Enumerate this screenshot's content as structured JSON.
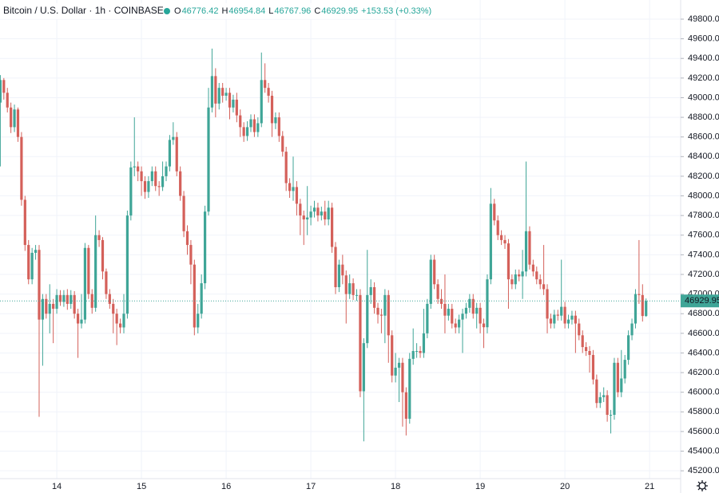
{
  "chart_data": {
    "type": "candlestick",
    "title": "Bitcoin / U.S. Dollar · 1h · COINBASE",
    "ohlc_labels": [
      "O",
      "H",
      "L",
      "C"
    ],
    "change_text": "+153.53 (+0.33%)",
    "up_color": "#3fa597",
    "down_color": "#d4605a",
    "grid": true,
    "xtick_labels": [
      "14",
      "15",
      "16",
      "17",
      "18",
      "19",
      "20",
      "21"
    ],
    "ylim": [
      45120,
      49995
    ],
    "yticks": [
      {
        "value": 45200,
        "label": "45200.00"
      },
      {
        "value": 45400,
        "label": "45400.00"
      },
      {
        "value": 45600,
        "label": "45600.00"
      },
      {
        "value": 45800,
        "label": "45800.00"
      },
      {
        "value": 46000,
        "label": "46000.00"
      },
      {
        "value": 46200,
        "label": "46200.00"
      },
      {
        "value": 46400,
        "label": "46400.00"
      },
      {
        "value": 46600,
        "label": "46600.00"
      },
      {
        "value": 46800,
        "label": "46800.00"
      },
      {
        "value": 47000,
        "label": "47000.00"
      },
      {
        "value": 47200,
        "label": "47200.00"
      },
      {
        "value": 47400,
        "label": "47400.00"
      },
      {
        "value": 47600,
        "label": "47600.00"
      },
      {
        "value": 47800,
        "label": "47800.00"
      },
      {
        "value": 48000,
        "label": "48000.00"
      },
      {
        "value": 48200,
        "label": "48200.00"
      },
      {
        "value": 48400,
        "label": "48400.00"
      },
      {
        "value": 48600,
        "label": "48600.00"
      },
      {
        "value": 48800,
        "label": "48800.00"
      },
      {
        "value": 49000,
        "label": "49000.00"
      },
      {
        "value": 49200,
        "label": "49200.00"
      },
      {
        "value": 49400,
        "label": "49400.00"
      },
      {
        "value": 49600,
        "label": "49600.00"
      },
      {
        "value": 49800,
        "label": "49800.00"
      }
    ],
    "open": [
      48950,
      49180,
      49050,
      48900,
      48700,
      48880,
      48600,
      47960,
      47500,
      47150,
      47420,
      47450,
      46740,
      46950,
      46800,
      46900,
      46850,
      46990,
      46920,
      46990,
      46900,
      46990,
      46800,
      46700,
      46740,
      47470,
      47000,
      46860,
      47600,
      47550,
      47230,
      47000,
      46900,
      46800,
      46700,
      46660,
      46800,
      47800,
      48290,
      48300,
      48250,
      48150,
      48040,
      48150,
      48250,
      48100,
      48090,
      48200,
      48300,
      48570,
      48600,
      48250,
      48000,
      47640,
      47500,
      47300,
      46660,
      46800,
      47110,
      47840,
      48900,
      49220,
      48940,
      49100,
      49020,
      49050,
      48900,
      48980,
      48820,
      48700,
      48610,
      48700,
      48780,
      48650,
      48740,
      49180,
      49100,
      49020,
      48740,
      48800,
      48610,
      48450,
      48130,
      48050,
      48090,
      47920,
      47800,
      47760,
      47780,
      47840,
      47880,
      47800,
      47840,
      47760,
      47880,
      47480,
      47070,
      47300,
      47190,
      47000,
      47110,
      46990,
      46990,
      46010,
      46500,
      46990,
      47070,
      46860,
      46790,
      46780,
      46990,
      46580,
      46170,
      46250,
      46300,
      46000,
      45730,
      46340,
      46420,
      46420,
      46400,
      46600,
      46900,
      47350,
      47100,
      46950,
      46900,
      46780,
      46850,
      46700,
      46660,
      46740,
      46800,
      46860,
      46950,
      46800,
      46860,
      46700,
      46662,
      47150,
      47920,
      47750,
      47600,
      47550,
      47516,
      47150,
      47100,
      47200,
      47180,
      47230,
      47640,
      47300,
      47230,
      47150,
      47100,
      47050,
      46750,
      46700,
      46790,
      46780,
      46870,
      46700,
      46740,
      46780,
      46700,
      46580,
      46460,
      46420,
      46380,
      46130,
      45890,
      45950,
      45970,
      45770,
      45770,
      46300,
      46000,
      46140,
      46330,
      46580,
      46700,
      47000,
      46990,
      46776.42
    ],
    "high": [
      49230,
      49200,
      49100,
      48950,
      48930,
      48900,
      48650,
      48000,
      47550,
      47470,
      47500,
      47500,
      47000,
      47000,
      47100,
      46950,
      47050,
      47040,
      47040,
      47050,
      47040,
      47030,
      46850,
      47000,
      47520,
      47500,
      47050,
      47800,
      47650,
      47580,
      47260,
      47050,
      46950,
      46850,
      46750,
      47000,
      47850,
      48350,
      48800,
      48350,
      48300,
      48200,
      48200,
      48300,
      48300,
      48150,
      48350,
      48350,
      48620,
      48750,
      48650,
      48300,
      48050,
      47700,
      47550,
      47350,
      46900,
      47200,
      47900,
      49100,
      49500,
      49300,
      49150,
      49150,
      49100,
      49100,
      49030,
      49050,
      48880,
      48750,
      48760,
      48830,
      48830,
      48800,
      49460,
      49350,
      49150,
      49070,
      48850,
      48850,
      48660,
      48500,
      48180,
      48400,
      48150,
      47970,
      47850,
      48100,
      47900,
      47950,
      47930,
      47890,
      47950,
      47950,
      47930,
      47530,
      47350,
      47400,
      47240,
      47200,
      47160,
      47050,
      47050,
      46550,
      47450,
      47150,
      47120,
      46910,
      46850,
      47050,
      47040,
      46630,
      46400,
      46350,
      46350,
      46050,
      46400,
      46650,
      46500,
      46470,
      46850,
      46950,
      47400,
      47400,
      47150,
      47050,
      47200,
      46900,
      46900,
      46750,
      46790,
      46850,
      46910,
      47000,
      47000,
      46910,
      46910,
      46750,
      47200,
      48080,
      47970,
      47800,
      47650,
      47600,
      47560,
      47200,
      47250,
      47250,
      47450,
      48350,
      47690,
      47350,
      47280,
      47200,
      47500,
      47100,
      46800,
      46840,
      46840,
      47350,
      46920,
      46790,
      46830,
      46830,
      46750,
      46630,
      46510,
      46470,
      46430,
      46180,
      46000,
      46050,
      46020,
      45820,
      46350,
      46350,
      46430,
      46380,
      46630,
      46750,
      47050,
      47550,
      47100,
      46954.84
    ],
    "low": [
      48300,
      48980,
      48850,
      48640,
      48650,
      48550,
      47900,
      47440,
      47100,
      47100,
      47350,
      45750,
      46270,
      46750,
      46600,
      46500,
      46800,
      46880,
      46870,
      46840,
      46850,
      46750,
      46350,
      46650,
      46700,
      46950,
      46800,
      46820,
      47480,
      47150,
      46950,
      46850,
      46600,
      46480,
      46600,
      46600,
      46750,
      47750,
      48200,
      48150,
      48000,
      47970,
      47980,
      48100,
      48050,
      48000,
      48050,
      48150,
      48250,
      48520,
      48200,
      47950,
      47580,
      47400,
      47100,
      46580,
      46600,
      46750,
      47050,
      47800,
      48850,
      48800,
      48880,
      48950,
      48970,
      48780,
      48850,
      48750,
      48600,
      48550,
      48560,
      48650,
      48600,
      48600,
      48700,
      49050,
      48950,
      48600,
      48680,
      48550,
      48400,
      48050,
      47980,
      47950,
      47800,
      47600,
      47500,
      47600,
      47700,
      47780,
      47740,
      47750,
      47700,
      47700,
      47420,
      47000,
      47020,
      47100,
      46700,
      46950,
      46940,
      46930,
      45950,
      45500,
      46450,
      46900,
      46800,
      46700,
      46600,
      46500,
      46300,
      46100,
      46100,
      45900,
      45650,
      45560,
      45680,
      46280,
      46350,
      46350,
      46350,
      46550,
      46850,
      47050,
      46900,
      46850,
      46600,
      46730,
      46650,
      46600,
      46600,
      46400,
      46750,
      46810,
      46750,
      46650,
      46600,
      46450,
      46600,
      47100,
      47700,
      47550,
      47500,
      47460,
      46850,
      47050,
      47050,
      47130,
      46950,
      47180,
      47250,
      47180,
      47100,
      47050,
      46990,
      46600,
      46650,
      46650,
      46730,
      46730,
      46650,
      46650,
      46690,
      46400,
      46530,
      46400,
      46370,
      46200,
      46080,
      45840,
      45840,
      45900,
      45700,
      45580,
      45720,
      45950,
      45950,
      46090,
      46280,
      46530,
      46650,
      46900,
      46720,
      46767.96
    ],
    "close": [
      49180,
      49050,
      48900,
      48700,
      48880,
      48600,
      47960,
      47500,
      47150,
      47420,
      47450,
      46740,
      46950,
      46800,
      46900,
      46850,
      46990,
      46920,
      46990,
      46900,
      46990,
      46800,
      46700,
      46740,
      47470,
      47000,
      46860,
      47600,
      47550,
      47230,
      47000,
      46900,
      46800,
      46700,
      46660,
      46800,
      47800,
      48290,
      48300,
      48250,
      48150,
      48040,
      48150,
      48250,
      48100,
      48090,
      48200,
      48300,
      48570,
      48600,
      48250,
      48000,
      47640,
      47500,
      47300,
      46660,
      46800,
      47110,
      47840,
      48900,
      49220,
      48940,
      49100,
      49020,
      49050,
      48900,
      48980,
      48820,
      48700,
      48610,
      48700,
      48780,
      48650,
      48740,
      49180,
      49100,
      49020,
      48740,
      48800,
      48610,
      48450,
      48130,
      48050,
      48090,
      47920,
      47800,
      47760,
      47780,
      47840,
      47880,
      47800,
      47840,
      47760,
      47880,
      47480,
      47070,
      47300,
      47190,
      47000,
      47110,
      46990,
      46990,
      46010,
      46500,
      46990,
      47070,
      46860,
      46790,
      46780,
      46990,
      46580,
      46170,
      46250,
      46300,
      46000,
      45730,
      46340,
      46420,
      46420,
      46400,
      46600,
      46900,
      47350,
      47100,
      46950,
      46900,
      46780,
      46850,
      46700,
      46660,
      46740,
      46800,
      46860,
      46950,
      46800,
      46860,
      46700,
      46662,
      47150,
      47920,
      47750,
      47600,
      47550,
      47516,
      47150,
      47100,
      47200,
      47180,
      47230,
      47640,
      47300,
      47230,
      47150,
      47100,
      47050,
      46750,
      46700,
      46790,
      46780,
      46870,
      46700,
      46740,
      46780,
      46700,
      46580,
      46460,
      46420,
      46380,
      46130,
      45890,
      45950,
      45970,
      45770,
      45770,
      46300,
      46000,
      46140,
      46330,
      46580,
      46700,
      47000,
      46990,
      46776.42,
      46929.95
    ]
  }
}
